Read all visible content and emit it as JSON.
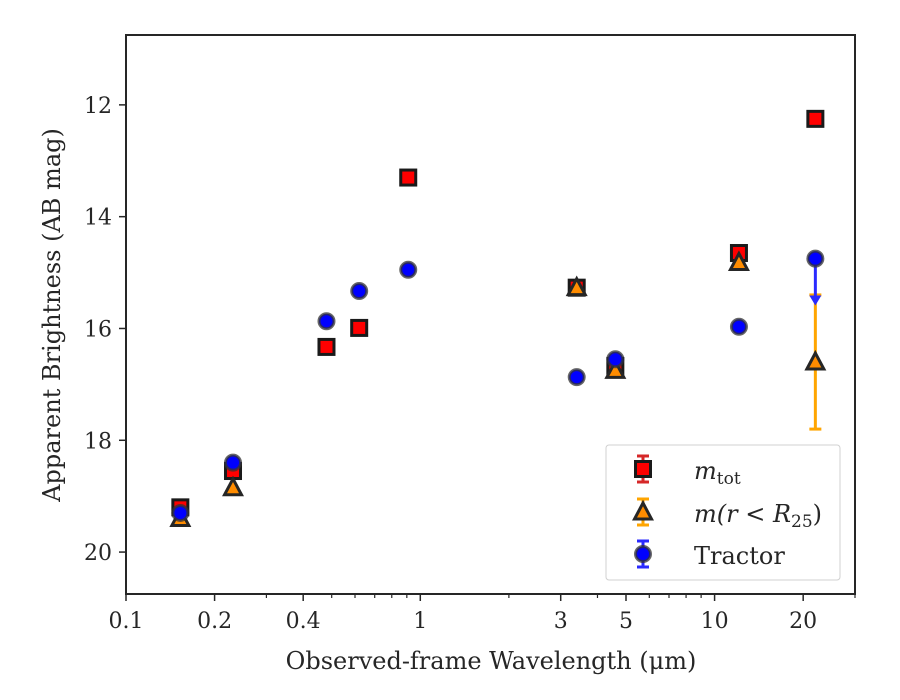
{
  "chart_data": {
    "type": "scatter",
    "xlabel": "Observed-frame Wavelength (μm)",
    "ylabel": "Apparent Brightness (AB mag)",
    "xscale": "log",
    "xlim": [
      0.1,
      30
    ],
    "ylim": [
      20.75,
      10.75
    ],
    "y_inverted": true,
    "grid": false,
    "legend_position": "bottom-right",
    "x_ticks": [
      {
        "value": 0.1,
        "label": "0.1"
      },
      {
        "value": 0.2,
        "label": "0.2"
      },
      {
        "value": 0.4,
        "label": "0.4"
      },
      {
        "value": 1,
        "label": "1"
      },
      {
        "value": 3,
        "label": "3"
      },
      {
        "value": 5,
        "label": "5"
      },
      {
        "value": 10,
        "label": "10"
      },
      {
        "value": 20,
        "label": "20"
      }
    ],
    "y_ticks": [
      {
        "value": 12,
        "label": "12"
      },
      {
        "value": 14,
        "label": "14"
      },
      {
        "value": 16,
        "label": "16"
      },
      {
        "value": 18,
        "label": "18"
      },
      {
        "value": 20,
        "label": "20"
      }
    ],
    "series": [
      {
        "name": "m_tot",
        "marker": "square",
        "color": "#ff0000",
        "errcolor": "#d62728",
        "points": [
          {
            "x": 0.153,
            "y": 19.2,
            "err": 0.06
          },
          {
            "x": 0.231,
            "y": 18.55,
            "err": 0.08
          },
          {
            "x": 0.48,
            "y": 16.33
          },
          {
            "x": 0.62,
            "y": 15.99
          },
          {
            "x": 0.91,
            "y": 13.3
          },
          {
            "x": 3.4,
            "y": 15.27
          },
          {
            "x": 4.6,
            "y": 16.67
          },
          {
            "x": 12.1,
            "y": 14.65
          },
          {
            "x": 22.0,
            "y": 12.25
          }
        ]
      },
      {
        "name": "m(r < R_25)",
        "marker": "triangle",
        "color": "#ff8c00",
        "errcolor": "#ffa500",
        "points": [
          {
            "x": 0.153,
            "y": 19.4
          },
          {
            "x": 0.231,
            "y": 18.85
          },
          {
            "x": 3.4,
            "y": 15.27
          },
          {
            "x": 4.6,
            "y": 16.75
          },
          {
            "x": 12.1,
            "y": 14.82
          },
          {
            "x": 22.0,
            "y": 16.6,
            "err": 1.2
          }
        ]
      },
      {
        "name": "Tractor",
        "marker": "circle",
        "color": "#0000ff",
        "errcolor": "#2a2aff",
        "points": [
          {
            "x": 0.153,
            "y": 19.3
          },
          {
            "x": 0.231,
            "y": 18.4
          },
          {
            "x": 0.48,
            "y": 15.87
          },
          {
            "x": 0.62,
            "y": 15.33
          },
          {
            "x": 0.91,
            "y": 14.95
          },
          {
            "x": 3.4,
            "y": 16.87
          },
          {
            "x": 4.6,
            "y": 16.55
          },
          {
            "x": 12.1,
            "y": 15.97
          },
          {
            "x": 22.0,
            "y": 14.75,
            "limit_to": 15.5
          }
        ]
      }
    ],
    "legend": [
      {
        "label_main": "m",
        "label_sub": "tot",
        "series": 0
      },
      {
        "label": "m(r < R",
        "label_sub": "25",
        "label_close": ")",
        "series": 1
      },
      {
        "label": "Tractor",
        "series": 2
      }
    ]
  }
}
